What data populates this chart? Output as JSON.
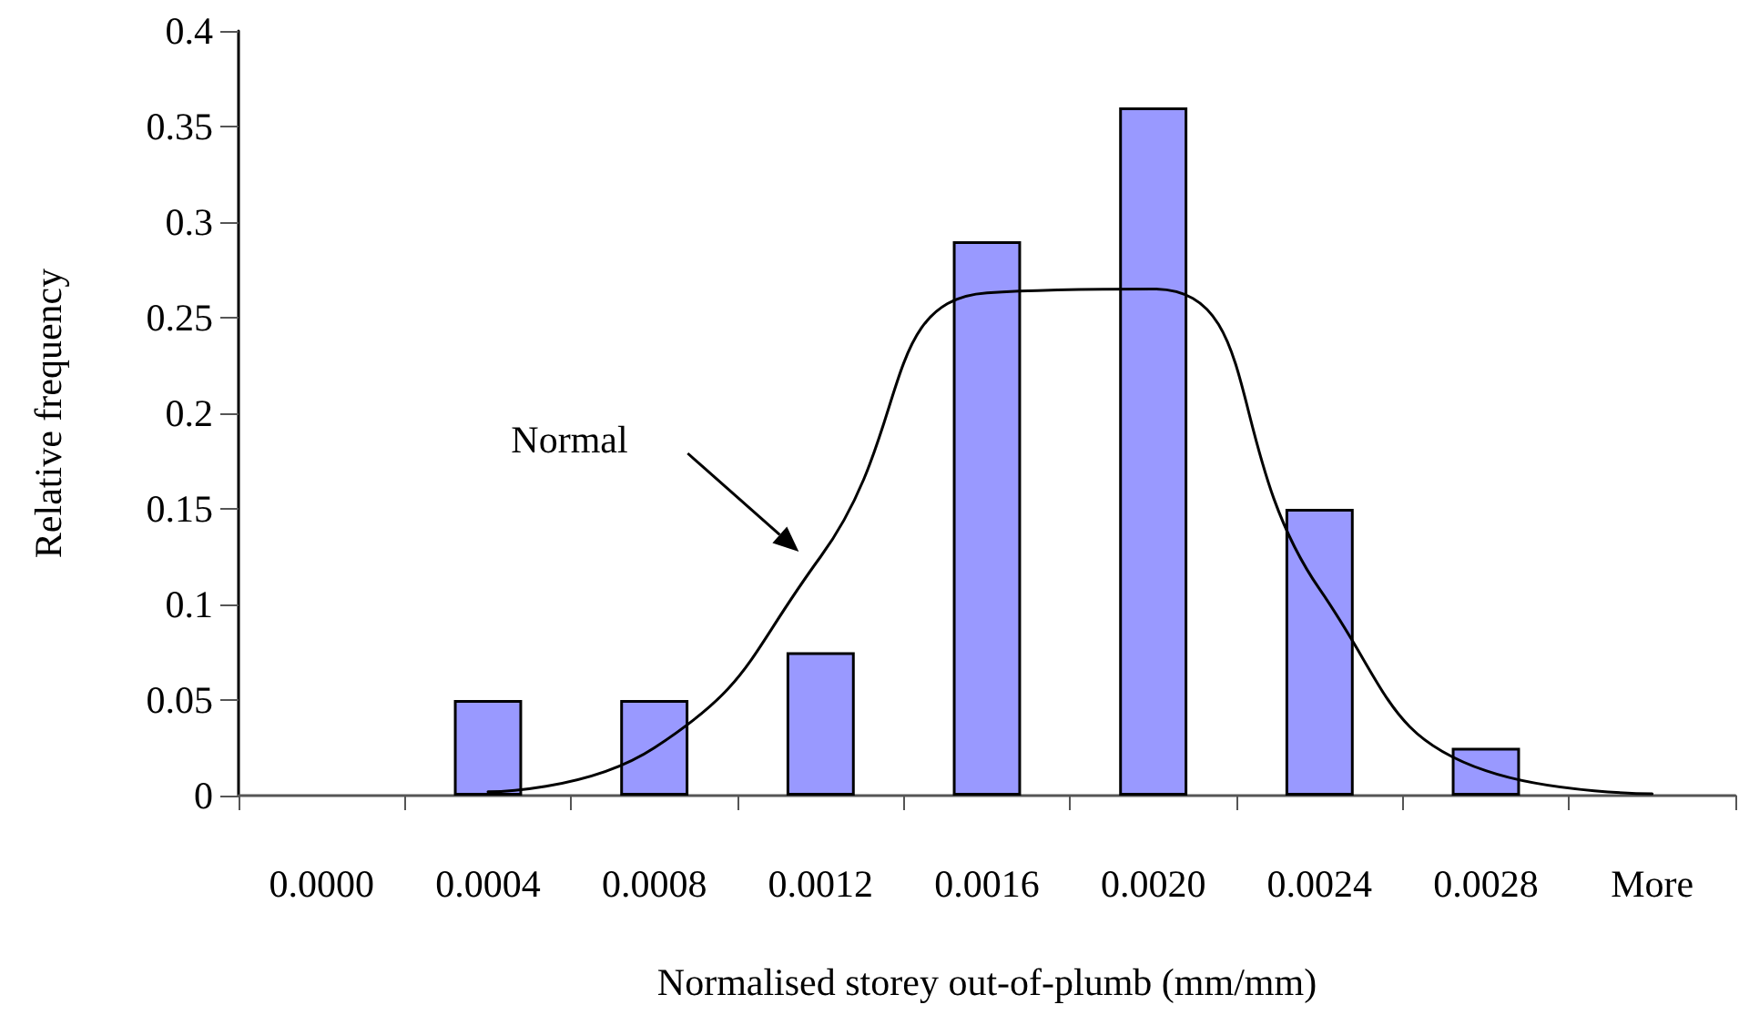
{
  "chart_data": {
    "type": "bar",
    "xlabel": "Normalised storey out-of-plumb (mm/mm)",
    "ylabel": "Relative frequency",
    "categories": [
      "0.0000",
      "0.0004",
      "0.0008",
      "0.0012",
      "0.0016",
      "0.0020",
      "0.0024",
      "0.0028",
      "More"
    ],
    "ylim": [
      0,
      0.4
    ],
    "yticks": [
      0,
      0.05,
      0.1,
      0.15,
      0.2,
      0.25,
      0.3,
      0.35,
      0.4
    ],
    "grid": false,
    "series": [
      {
        "color": "#9999ff",
        "values": [
          0,
          0.05,
          0.05,
          0.075,
          0.29,
          0.36,
          0.15,
          0.025,
          0
        ]
      },
      {
        "type": "line",
        "color": "#000000",
        "marker": "none",
        "values": [
          null,
          0.002,
          0.025,
          0.125,
          0.263,
          0.265,
          0.108,
          0.013,
          0.001
        ]
      }
    ],
    "annotations": [
      "Normal"
    ]
  }
}
